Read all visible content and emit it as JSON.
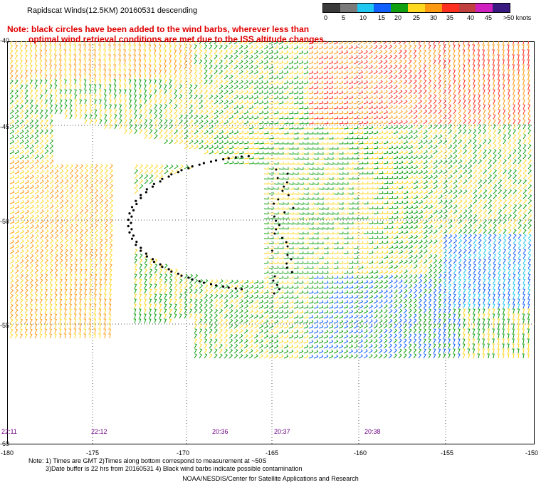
{
  "title": "Rapidscat Winds(12.5KM) 20160531 descending",
  "note_line1": "Note: black circles have been added to the wind barbs, wherever less than",
  "note_line2": "optimal wind retrieval conditions are met due to the ISS altitude changes.",
  "legend": {
    "labels": [
      "0",
      "5",
      "10",
      "15",
      "20",
      "25",
      "30",
      "35",
      "40",
      "45",
      ">50 knots"
    ],
    "colors": [
      "#3a3a3a",
      "#7a7a7a",
      "#1ec8f0",
      "#1060ff",
      "#10a010",
      "#ffd820",
      "#ff9a10",
      "#ff3020",
      "#c04040",
      "#d020c0",
      "#3a1a80"
    ]
  },
  "lat_labels": [
    "-40",
    "-45",
    "-50",
    "-55",
    "-60"
  ],
  "lon_labels": [
    "-180",
    "-175",
    "-170",
    "-165",
    "-160",
    "-155",
    "-150"
  ],
  "time_labels": [
    "22:11",
    "22:12",
    "20:36",
    "20:37",
    "20:38"
  ],
  "footnote_line1": "Note: 1) Times are GMT 2)Times along bottom correspond to measurement at ~50S",
  "footnote_line2": "3)Date buffer is 22 hrs from 20160531 4) Black wind barbs indicate possible contamination",
  "credit": "NOAA/NESDIS/Center for Satellite Applications and Research"
}
